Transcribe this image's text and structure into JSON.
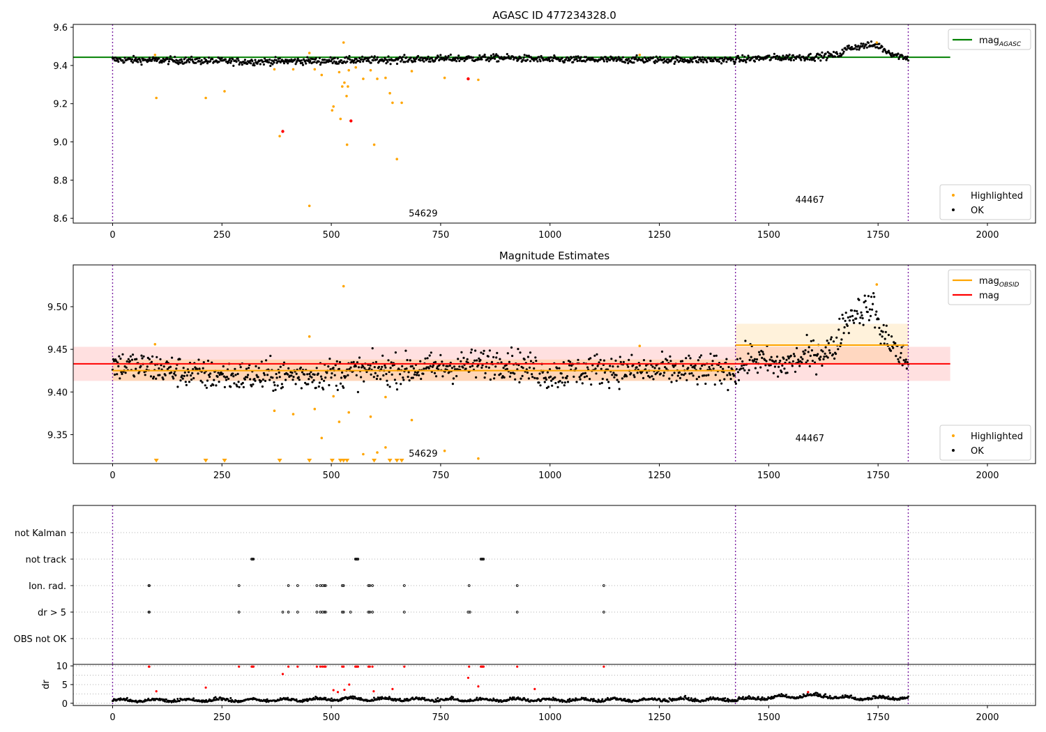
{
  "chart_data": [
    {
      "type": "scatter",
      "title": "AGASC ID 477234328.0",
      "xlim": [
        -90,
        2110
      ],
      "ylim": [
        8.575,
        9.615
      ],
      "x_ticks": [
        0,
        250,
        500,
        750,
        1000,
        1250,
        1500,
        1750,
        2000
      ],
      "y_ticks": [
        8.6,
        8.8,
        9.0,
        9.2,
        9.4,
        9.6
      ],
      "y_tick_decimals": 1,
      "obsid_boundaries": [
        0,
        1424,
        1819
      ],
      "obsid_labels": [
        {
          "text": "54629",
          "x": 710,
          "y": 8.61
        },
        {
          "text": "44467",
          "x": 1594,
          "y": 8.68
        }
      ],
      "reference_lines": [
        {
          "name": "mag",
          "subscript": "AGASC",
          "value": 9.443,
          "x_range": [
            -90,
            1915
          ],
          "color": "#008000"
        }
      ],
      "ok_trend": [
        {
          "x": 0,
          "y": 9.43
        },
        {
          "x": 200,
          "y": 9.425
        },
        {
          "x": 300,
          "y": 9.42
        },
        {
          "x": 500,
          "y": 9.425
        },
        {
          "x": 750,
          "y": 9.435
        },
        {
          "x": 900,
          "y": 9.44
        },
        {
          "x": 1000,
          "y": 9.43
        },
        {
          "x": 1200,
          "y": 9.43
        },
        {
          "x": 1424,
          "y": 9.43
        },
        {
          "x": 1500,
          "y": 9.44
        },
        {
          "x": 1600,
          "y": 9.445
        },
        {
          "x": 1660,
          "y": 9.455
        },
        {
          "x": 1680,
          "y": 9.49
        },
        {
          "x": 1720,
          "y": 9.505
        },
        {
          "x": 1750,
          "y": 9.505
        },
        {
          "x": 1770,
          "y": 9.475
        },
        {
          "x": 1790,
          "y": 9.455
        },
        {
          "x": 1819,
          "y": 9.44
        }
      ],
      "ok_scatter": 0.009,
      "series": [
        {
          "name": "Highlighted",
          "color": "#FFA500",
          "points": [
            [
              97,
              9.455
            ],
            [
              100,
              9.23
            ],
            [
              213,
              9.23
            ],
            [
              256,
              9.265
            ],
            [
              370,
              9.38
            ],
            [
              382,
              9.03
            ],
            [
              413,
              9.38
            ],
            [
              450,
              9.465
            ],
            [
              450,
              8.665
            ],
            [
              462,
              9.38
            ],
            [
              478,
              9.35
            ],
            [
              502,
              9.165
            ],
            [
              505,
              9.185
            ],
            [
              518,
              9.365
            ],
            [
              521,
              9.12
            ],
            [
              525,
              9.29
            ],
            [
              528,
              9.52
            ],
            [
              530,
              9.31
            ],
            [
              535,
              9.24
            ],
            [
              536,
              8.985
            ],
            [
              538,
              9.29
            ],
            [
              540,
              9.375
            ],
            [
              556,
              9.39
            ],
            [
              573,
              9.33
            ],
            [
              590,
              9.375
            ],
            [
              598,
              8.985
            ],
            [
              605,
              9.33
            ],
            [
              624,
              9.335
            ],
            [
              634,
              9.255
            ],
            [
              640,
              9.205
            ],
            [
              650,
              8.91
            ],
            [
              661,
              9.205
            ],
            [
              684,
              9.37
            ],
            [
              759,
              9.335
            ],
            [
              836,
              9.325
            ],
            [
              1205,
              9.455
            ],
            [
              1747,
              9.52
            ]
          ]
        },
        {
          "name": "Red",
          "color": "#FF0000",
          "points": [
            [
              389,
              9.055
            ],
            [
              545,
              9.11
            ],
            [
              813,
              9.33
            ]
          ]
        }
      ],
      "legends": [
        {
          "position": "top-right",
          "entries": [
            {
              "label": "mag",
              "subscript": "AGASC",
              "kind": "line",
              "color": "#008000"
            }
          ]
        },
        {
          "position": "bottom-right",
          "entries": [
            {
              "label": "Highlighted",
              "kind": "dot",
              "color": "#FFA500"
            },
            {
              "label": "OK",
              "kind": "dot",
              "color": "#000000"
            }
          ]
        }
      ]
    },
    {
      "type": "scatter",
      "title": "Magnitude Estimates",
      "xlim": [
        -90,
        2110
      ],
      "ylim": [
        9.316,
        9.549
      ],
      "x_ticks": [
        0,
        250,
        500,
        750,
        1000,
        1250,
        1500,
        1750,
        2000
      ],
      "y_ticks": [
        9.35,
        9.4,
        9.45,
        9.5
      ],
      "y_tick_decimals": 2,
      "obsid_boundaries": [
        0,
        1424,
        1819
      ],
      "obsid_labels": [
        {
          "text": "54629",
          "x": 710,
          "y": 9.324
        },
        {
          "text": "44467",
          "x": 1594,
          "y": 9.342
        }
      ],
      "bands": [
        {
          "x_range": [
            -90,
            1915
          ],
          "y_range": [
            9.413,
            9.453
          ],
          "color": "#FF0000",
          "opacity": 0.12
        },
        {
          "x_range": [
            0,
            1424
          ],
          "y_range": [
            9.413,
            9.438
          ],
          "color": "#FFA500",
          "opacity": 0.18
        },
        {
          "x_range": [
            1424,
            1819
          ],
          "y_range": [
            9.432,
            9.48
          ],
          "color": "#FFA500",
          "opacity": 0.14
        }
      ],
      "reference_lines": [
        {
          "name": "mag",
          "value": 9.433,
          "x_range": [
            -90,
            1915
          ],
          "color": "#FF0000"
        },
        {
          "name": "mag",
          "subscript": "OBSID",
          "value": 9.425,
          "x_range": [
            0,
            1424
          ],
          "color": "#FFA500"
        },
        {
          "name": "mag",
          "subscript": "OBSID",
          "value": 9.455,
          "x_range": [
            1424,
            1819
          ],
          "color": "#FFA500"
        }
      ],
      "ok_trend": [
        {
          "x": 0,
          "y": 9.432
        },
        {
          "x": 100,
          "y": 9.428
        },
        {
          "x": 200,
          "y": 9.42
        },
        {
          "x": 300,
          "y": 9.418
        },
        {
          "x": 450,
          "y": 9.42
        },
        {
          "x": 600,
          "y": 9.425
        },
        {
          "x": 750,
          "y": 9.428
        },
        {
          "x": 900,
          "y": 9.436
        },
        {
          "x": 1000,
          "y": 9.42
        },
        {
          "x": 1100,
          "y": 9.427
        },
        {
          "x": 1200,
          "y": 9.425
        },
        {
          "x": 1424,
          "y": 9.425
        },
        {
          "x": 1460,
          "y": 9.44
        },
        {
          "x": 1520,
          "y": 9.43
        },
        {
          "x": 1580,
          "y": 9.44
        },
        {
          "x": 1620,
          "y": 9.447
        },
        {
          "x": 1650,
          "y": 9.45
        },
        {
          "x": 1670,
          "y": 9.48
        },
        {
          "x": 1700,
          "y": 9.495
        },
        {
          "x": 1740,
          "y": 9.5
        },
        {
          "x": 1760,
          "y": 9.465
        },
        {
          "x": 1780,
          "y": 9.46
        },
        {
          "x": 1800,
          "y": 9.44
        },
        {
          "x": 1819,
          "y": 9.435
        }
      ],
      "ok_scatter": 0.009,
      "series": [
        {
          "name": "Highlighted",
          "color": "#FFA500",
          "points": [
            [
              97,
              9.456
            ],
            [
              370,
              9.378
            ],
            [
              413,
              9.374
            ],
            [
              450,
              9.465
            ],
            [
              462,
              9.38
            ],
            [
              478,
              9.346
            ],
            [
              505,
              9.395
            ],
            [
              518,
              9.365
            ],
            [
              528,
              9.524
            ],
            [
              540,
              9.376
            ],
            [
              573,
              9.327
            ],
            [
              590,
              9.371
            ],
            [
              605,
              9.329
            ],
            [
              624,
              9.394
            ],
            [
              624,
              9.335
            ],
            [
              684,
              9.367
            ],
            [
              759,
              9.331
            ],
            [
              836,
              9.322
            ],
            [
              1205,
              9.454
            ],
            [
              1747,
              9.526
            ]
          ]
        },
        {
          "name": "Clipped",
          "color": "#FFA500",
          "points": [
            [
              100,
              9.318
            ],
            [
              213,
              9.318
            ],
            [
              256,
              9.318
            ],
            [
              382,
              9.318
            ],
            [
              450,
              9.318
            ],
            [
              502,
              9.318
            ],
            [
              521,
              9.318
            ],
            [
              528,
              9.318
            ],
            [
              536,
              9.318
            ],
            [
              598,
              9.318
            ],
            [
              634,
              9.318
            ],
            [
              650,
              9.318
            ],
            [
              661,
              9.318
            ]
          ]
        }
      ],
      "legends": [
        {
          "position": "top-right",
          "entries": [
            {
              "label": "mag",
              "subscript": "OBSID",
              "kind": "line",
              "color": "#FFA500"
            },
            {
              "label": "mag",
              "kind": "line",
              "color": "#FF0000"
            }
          ]
        },
        {
          "position": "bottom-right",
          "entries": [
            {
              "label": "Highlighted",
              "kind": "dot",
              "color": "#FFA500"
            },
            {
              "label": "OK",
              "kind": "dot",
              "color": "#000000"
            }
          ]
        }
      ]
    },
    {
      "type": "scatter",
      "xlim": [
        -90,
        2110
      ],
      "categories": [
        "OBS not OK",
        "dr > 5",
        "Ion. rad.",
        "not track",
        "not Kalman"
      ],
      "obsid_boundaries": [
        0,
        1424,
        1819
      ],
      "flags": {
        "not track": [
          318,
          320,
          322,
          555,
          557,
          559,
          561,
          842,
          844,
          846,
          848
        ],
        "Ion. rad.": [
          83,
          84,
          289,
          402,
          423,
          467,
          475,
          480,
          484,
          487,
          525,
          528,
          585,
          588,
          594,
          667,
          815,
          925,
          1123
        ],
        "dr > 5": [
          83,
          84,
          289,
          389,
          402,
          423,
          467,
          475,
          480,
          484,
          487,
          525,
          528,
          544,
          585,
          588,
          594,
          667,
          813,
          817,
          925,
          1123
        ]
      }
    },
    {
      "type": "scatter",
      "xlim": [
        -90,
        2110
      ],
      "ylim": [
        -0.6,
        10.4
      ],
      "x_ticks": [
        0,
        250,
        500,
        750,
        1000,
        1250,
        1500,
        1750,
        2000
      ],
      "y_ticks": [
        0,
        5,
        10
      ],
      "ylabel": "dr",
      "obsid_boundaries": [
        0,
        1424,
        1819
      ],
      "grid": true,
      "series": [
        {
          "name": "red",
          "color": "#FF0000",
          "points": [
            [
              83,
              9.8
            ],
            [
              84,
              9.8
            ],
            [
              100,
              3.2
            ],
            [
              213,
              4.2
            ],
            [
              289,
              9.8
            ],
            [
              318,
              9.8
            ],
            [
              320,
              9.8
            ],
            [
              322,
              9.8
            ],
            [
              389,
              7.8
            ],
            [
              402,
              9.8
            ],
            [
              423,
              9.8
            ],
            [
              467,
              9.8
            ],
            [
              475,
              9.8
            ],
            [
              480,
              9.8
            ],
            [
              484,
              9.8
            ],
            [
              487,
              9.8
            ],
            [
              505,
              3.5
            ],
            [
              515,
              3.0
            ],
            [
              525,
              9.8
            ],
            [
              528,
              9.8
            ],
            [
              530,
              3.6
            ],
            [
              541,
              5.0
            ],
            [
              555,
              9.8
            ],
            [
              557,
              9.8
            ],
            [
              559,
              9.8
            ],
            [
              561,
              9.8
            ],
            [
              585,
              9.8
            ],
            [
              588,
              9.8
            ],
            [
              594,
              9.8
            ],
            [
              597,
              3.2
            ],
            [
              640,
              3.8
            ],
            [
              667,
              9.8
            ],
            [
              813,
              6.8
            ],
            [
              815,
              9.8
            ],
            [
              836,
              4.5
            ],
            [
              842,
              9.8
            ],
            [
              844,
              9.8
            ],
            [
              846,
              9.8
            ],
            [
              848,
              9.8
            ],
            [
              925,
              9.8
            ],
            [
              965,
              3.8
            ],
            [
              1123,
              9.8
            ],
            [
              1590,
              3.0
            ]
          ]
        }
      ],
      "black_trend": [
        {
          "x": 0,
          "y": 0.5
        },
        {
          "x": 400,
          "y": 0.6
        },
        {
          "x": 550,
          "y": 0.9
        },
        {
          "x": 700,
          "y": 0.7
        },
        {
          "x": 1000,
          "y": 0.6
        },
        {
          "x": 1424,
          "y": 0.7
        },
        {
          "x": 1500,
          "y": 1.2
        },
        {
          "x": 1600,
          "y": 1.8
        },
        {
          "x": 1700,
          "y": 1.0
        },
        {
          "x": 1819,
          "y": 1.2
        }
      ]
    }
  ]
}
